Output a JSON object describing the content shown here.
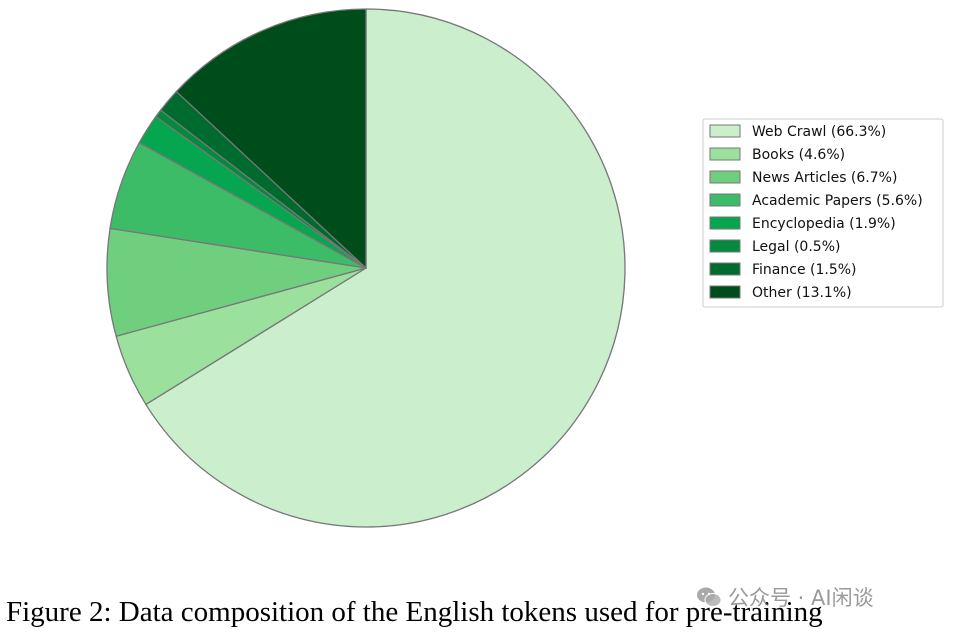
{
  "chart_data": {
    "type": "pie",
    "start_angle_deg": 90,
    "direction": "clockwise",
    "slices": [
      {
        "label": "Web Crawl (66.3%)",
        "value": 66.3,
        "color": "#cbeecd"
      },
      {
        "label": "Books (4.6%)",
        "value": 4.6,
        "color": "#9ce09e"
      },
      {
        "label": "News Articles (6.7%)",
        "value": 6.7,
        "color": "#70cf7e"
      },
      {
        "label": "Academic Papers (5.6%)",
        "value": 5.6,
        "color": "#3dbc68"
      },
      {
        "label": "Encyclopedia (1.9%)",
        "value": 1.9,
        "color": "#05a64f"
      },
      {
        "label": "Legal (0.5%)",
        "value": 0.5,
        "color": "#048a3f"
      },
      {
        "label": "Finance (1.5%)",
        "value": 1.5,
        "color": "#006b2e"
      },
      {
        "label": "Other (13.1%)",
        "value": 13.1,
        "color": "#004d1c"
      }
    ],
    "edge_color": "#777777",
    "legend_position": "right"
  },
  "caption": "Figure 2: Data composition of the English tokens used for pre-training",
  "watermark": "公众号 · AI闲谈"
}
